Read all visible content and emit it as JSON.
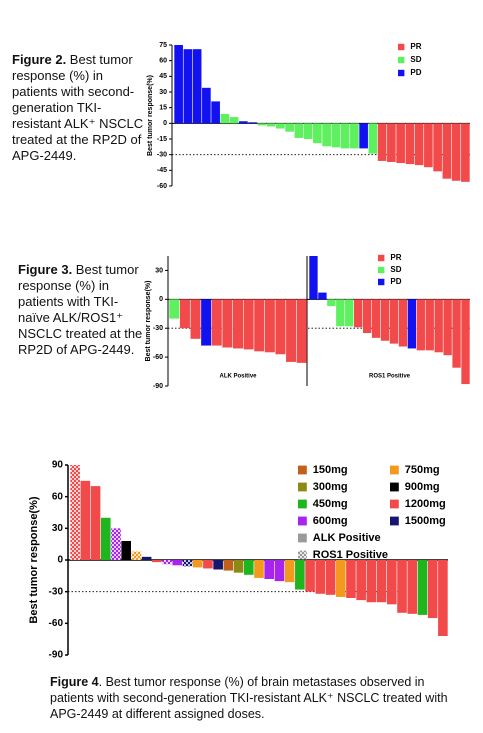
{
  "chart_data": [
    {
      "type": "waterfall",
      "caption_label": "Figure 2.",
      "caption": "Best tumor response (%) in patients with second-generation TKI-resistant ALK⁺ NSCLC treated at the RP2D of APG-2449.",
      "y_label": "Best tumor response(%)",
      "ylim": [
        -60,
        75
      ],
      "yticks": [
        75,
        60,
        45,
        30,
        15,
        0,
        -15,
        -30,
        -45,
        -60
      ],
      "reference_line": -30,
      "series": [
        {
          "name": "PR",
          "color": "#f24a4a",
          "values": [
            null,
            null,
            null,
            null,
            null,
            null,
            null,
            null,
            null,
            null,
            null,
            null,
            null,
            null,
            null,
            null,
            null,
            null,
            null,
            null,
            null,
            null,
            -36,
            -37,
            -38,
            -39,
            -40,
            -42,
            -46,
            -53,
            -55,
            -56
          ]
        },
        {
          "name": "SD",
          "color": "#5ef05e",
          "values": [
            null,
            null,
            null,
            null,
            null,
            9,
            6,
            null,
            null,
            -2,
            -3,
            -5,
            -8,
            -14,
            -15,
            -19,
            -22,
            -23,
            -24,
            -24,
            null,
            -29,
            null,
            null,
            null,
            null,
            null,
            null,
            null,
            null,
            null,
            null
          ]
        },
        {
          "name": "PD",
          "color": "#1212f0",
          "values": [
            75,
            71,
            71,
            34,
            21,
            null,
            null,
            2,
            1,
            null,
            null,
            null,
            null,
            null,
            null,
            null,
            null,
            null,
            null,
            null,
            -24,
            null,
            null,
            null,
            null,
            null,
            null,
            null,
            null,
            null,
            null,
            null
          ]
        }
      ]
    },
    {
      "type": "grouped-waterfall",
      "caption_label": "Figure 3.",
      "caption": "Best tumor response (%) in patients with TKI-naïve ALK/ROS1⁺ NSCLC treated at the RP2D of APG-2449.",
      "y_label": "Best tumor response(%)",
      "ylim": [
        -90,
        45
      ],
      "yticks": [
        30,
        0,
        -30,
        -60,
        -90
      ],
      "reference_line": -30,
      "series": [
        {
          "name": "PR",
          "color": "#f24a4a"
        },
        {
          "name": "SD",
          "color": "#5ef05e"
        },
        {
          "name": "PD",
          "color": "#1212f0"
        }
      ],
      "groups": [
        {
          "name": "ALK Positive",
          "values": [
            [
              null,
              -30,
              -41,
              null,
              -48,
              -50,
              -51,
              -52,
              -54,
              -55,
              -57,
              -65,
              -66
            ],
            [
              -20,
              null,
              null,
              null,
              null,
              null,
              null,
              null,
              null,
              null,
              null,
              null,
              null
            ],
            [
              null,
              null,
              null,
              -48,
              null,
              null,
              null,
              null,
              null,
              null,
              null,
              null,
              null
            ]
          ]
        },
        {
          "name": "ROS1 Positive",
          "values": [
            [
              null,
              null,
              null,
              null,
              null,
              -29,
              -35,
              -40,
              -43,
              -46,
              -49,
              null,
              -53,
              -53,
              -55,
              -58,
              -71,
              -88
            ],
            [
              null,
              null,
              -7,
              -28,
              -28,
              null,
              null,
              null,
              null,
              null,
              null,
              null,
              null,
              null,
              null,
              null,
              null,
              null
            ],
            [
              45,
              7,
              null,
              null,
              null,
              null,
              null,
              null,
              null,
              null,
              null,
              -51,
              null,
              null,
              null,
              null,
              null,
              null
            ]
          ]
        }
      ]
    },
    {
      "type": "waterfall",
      "caption_label": "Figure 4",
      "caption": ". Best tumor response (%) of brain metastases observed in patients with second-generation TKI-resistant ALK⁺ NSCLC treated with APG-2449 at different assigned doses.",
      "y_label": "Best tumor response(%)",
      "ylim": [
        -90,
        90
      ],
      "yticks": [
        90,
        60,
        30,
        0,
        -30,
        -60,
        -90
      ],
      "reference_line": -30,
      "series": [
        {
          "name": "150mg",
          "color": "#c0601a",
          "values": [
            null,
            null,
            null,
            null,
            null,
            null,
            null,
            null,
            null,
            null,
            null,
            null,
            null,
            null,
            null,
            -10,
            null,
            null,
            null,
            null,
            null,
            null,
            null,
            null,
            null,
            null,
            null,
            null,
            null,
            null,
            null,
            null,
            null,
            null,
            null,
            null,
            null
          ]
        },
        {
          "name": "300mg",
          "color": "#8c8a14",
          "values": [
            null,
            null,
            null,
            null,
            null,
            null,
            null,
            null,
            null,
            null,
            null,
            null,
            null,
            null,
            null,
            null,
            -12,
            null,
            null,
            null,
            null,
            null,
            null,
            null,
            null,
            null,
            null,
            null,
            null,
            null,
            null,
            null,
            null,
            null,
            null,
            null,
            null
          ]
        },
        {
          "name": "450mg",
          "color": "#1fb51f",
          "values": [
            null,
            null,
            null,
            40,
            null,
            null,
            null,
            null,
            null,
            null,
            null,
            null,
            null,
            null,
            null,
            null,
            null,
            -14,
            null,
            null,
            null,
            null,
            -28,
            null,
            null,
            null,
            null,
            null,
            null,
            null,
            null,
            null,
            null,
            null,
            -52,
            null,
            null
          ]
        },
        {
          "name": "600mg",
          "color": "#a624ee",
          "values": [
            null,
            null,
            null,
            null,
            30,
            null,
            null,
            null,
            null,
            -4,
            -5,
            null,
            null,
            null,
            null,
            null,
            null,
            null,
            null,
            -18,
            -20,
            null,
            null,
            null,
            null,
            null,
            null,
            null,
            null,
            null,
            null,
            null,
            null,
            null,
            null,
            null,
            null
          ]
        },
        {
          "name": "750mg",
          "color": "#f39a1e",
          "values": [
            null,
            null,
            null,
            null,
            null,
            null,
            8,
            null,
            null,
            null,
            null,
            null,
            -7,
            null,
            null,
            null,
            null,
            null,
            -17,
            null,
            null,
            -21,
            null,
            null,
            null,
            null,
            -35,
            null,
            null,
            null,
            null,
            null,
            null,
            null,
            null,
            null,
            null
          ]
        },
        {
          "name": "900mg",
          "color": "#000000",
          "values": [
            null,
            null,
            null,
            null,
            null,
            18,
            null,
            null,
            null,
            null,
            null,
            null,
            null,
            null,
            null,
            null,
            null,
            null,
            null,
            null,
            null,
            null,
            null,
            null,
            null,
            null,
            null,
            null,
            null,
            null,
            null,
            null,
            null,
            null,
            null,
            null,
            null
          ]
        },
        {
          "name": "1200mg",
          "color": "#f24a4a",
          "values": [
            90,
            75,
            70,
            null,
            null,
            null,
            null,
            null,
            -2,
            null,
            null,
            null,
            null,
            -8,
            null,
            null,
            null,
            null,
            null,
            null,
            null,
            null,
            null,
            -30,
            -32,
            -33,
            null,
            -36,
            -38,
            -40,
            -40,
            -42,
            -50,
            -51,
            null,
            -55,
            -72
          ]
        },
        {
          "name": "1500mg",
          "color": "#16166e",
          "values": [
            null,
            null,
            null,
            null,
            null,
            null,
            null,
            3,
            null,
            null,
            null,
            -6,
            null,
            null,
            -9,
            null,
            null,
            null,
            null,
            null,
            null,
            null,
            null,
            null,
            null,
            null,
            null,
            null,
            null,
            null,
            null,
            null,
            null,
            null,
            null,
            null,
            null
          ]
        }
      ],
      "ros1_positive": [
        true,
        false,
        false,
        false,
        true,
        false,
        true,
        false,
        false,
        true,
        false,
        true,
        false,
        false,
        false,
        false,
        false,
        false,
        false,
        false,
        false,
        false,
        false,
        false,
        false,
        false,
        false,
        false,
        false,
        false,
        false,
        false,
        false,
        false,
        false,
        false,
        false
      ],
      "pattern_legend": [
        "ALK Positive",
        "ROS1 Positive"
      ],
      "pattern_color": "#9a9a9a"
    }
  ]
}
